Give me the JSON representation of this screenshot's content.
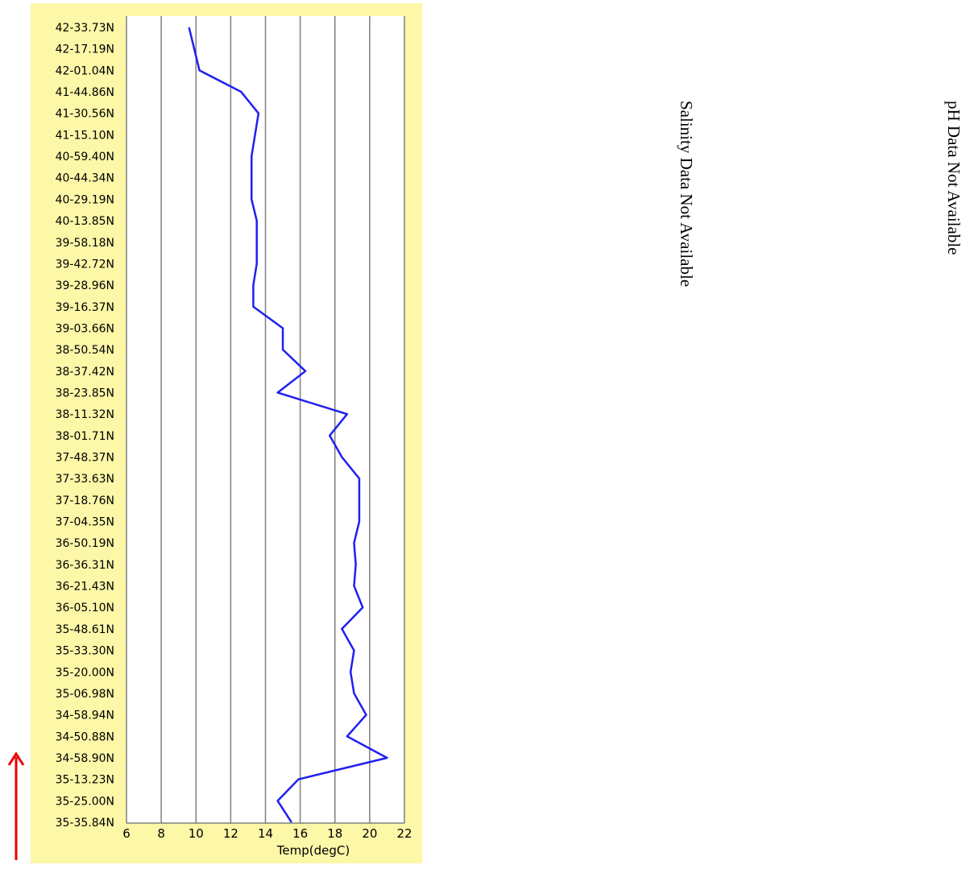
{
  "chart_data": {
    "type": "line",
    "categories": [
      "42-33.73N",
      "42-17.19N",
      "42-01.04N",
      "41-44.86N",
      "41-30.56N",
      "41-15.10N",
      "40-59.40N",
      "40-44.34N",
      "40-29.19N",
      "40-13.85N",
      "39-58.18N",
      "39-42.72N",
      "39-28.96N",
      "39-16.37N",
      "39-03.66N",
      "38-50.54N",
      "38-37.42N",
      "38-23.85N",
      "38-11.32N",
      "38-01.71N",
      "37-48.37N",
      "37-33.63N",
      "37-18.76N",
      "37-04.35N",
      "36-50.19N",
      "36-36.31N",
      "36-21.43N",
      "36-05.10N",
      "35-48.61N",
      "35-33.30N",
      "35-20.00N",
      "35-06.98N",
      "34-58.94N",
      "34-50.88N",
      "34-58.90N",
      "35-13.23N",
      "35-25.00N",
      "35-35.84N"
    ],
    "values": [
      9.6,
      9.9,
      10.2,
      12.6,
      13.6,
      13.4,
      13.2,
      13.2,
      13.2,
      13.5,
      13.5,
      13.5,
      13.3,
      13.3,
      15.0,
      15.0,
      16.3,
      14.7,
      18.7,
      17.7,
      18.4,
      19.4,
      19.4,
      19.4,
      19.1,
      19.2,
      19.1,
      19.6,
      18.4,
      19.1,
      18.9,
      19.1,
      19.8,
      18.7,
      21.0,
      15.9,
      14.7,
      15.5
    ],
    "color": "#2020f0",
    "xlabel": "Temp(degC)",
    "xlim": [
      6,
      22
    ],
    "xticks": [
      6,
      8,
      10,
      12,
      14,
      16,
      18,
      20,
      22
    ],
    "grid": true,
    "annotations": [
      "Salinity Data Not Available",
      "pH Data Not Available"
    ]
  }
}
